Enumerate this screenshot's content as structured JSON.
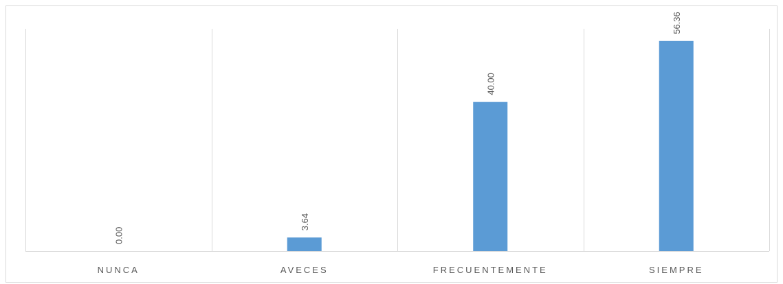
{
  "chart_data": {
    "type": "bar",
    "title": "",
    "xlabel": "",
    "ylabel": "",
    "categories": [
      "NUNCA",
      "AVECES",
      "FRECUENTEMENTE",
      "SIEMPRE"
    ],
    "values": [
      0.0,
      3.64,
      40.0,
      56.36
    ],
    "data_labels": [
      "0.00",
      "3.64",
      "40.00",
      "56.36"
    ],
    "ylim": [
      0,
      60
    ],
    "grid": "vertical category separators",
    "legend": "none",
    "colors": {
      "bar": "#5b9bd5",
      "grid": "#d9d9d9",
      "text": "#595959"
    }
  }
}
